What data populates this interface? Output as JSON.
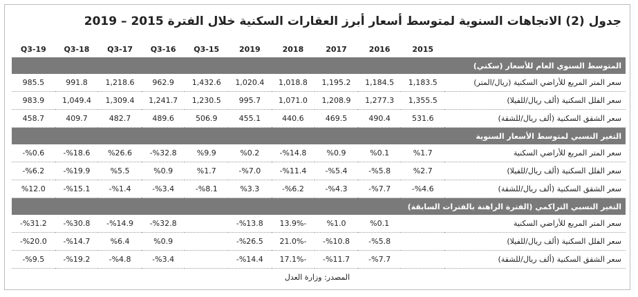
{
  "title": "جدول (2) الاتجاهات السنوية لمتوسط أسعار أبرز العقارات السكنية خلال الفترة 2015 – 2019",
  "table": {
    "columns": [
      "2015",
      "2016",
      "2017",
      "2018",
      "2019",
      "15-Q3",
      "16-Q3",
      "17-Q3",
      "18-Q3",
      "19-Q3"
    ],
    "sections": [
      {
        "title": "المتوسط السنوي العام للأسعار (سكني)",
        "rows": [
          {
            "label": "سعر المتر المربع للأراضي السكنية (ريال/المتر)",
            "values": [
              "1,183.5",
              "1,184.5",
              "1,195.2",
              "1,018.8",
              "1,020.4",
              "1,432.6",
              "962.9",
              "1,218.6",
              "991.8",
              "985.5"
            ]
          },
          {
            "label": "سعر الفلل السكنية (ألف ريال/للفيلا)",
            "values": [
              "1,355.5",
              "1,277.3",
              "1,208.9",
              "1,071.0",
              "995.7",
              "1,230.5",
              "1,241.7",
              "1,309.4",
              "1,049.4",
              "983.9"
            ]
          },
          {
            "label": "سعر الشقق السكنية (ألف ريال/للشقة)",
            "values": [
              "531.6",
              "490.4",
              "469.5",
              "440.6",
              "455.1",
              "506.9",
              "489.6",
              "482.7",
              "409.7",
              "458.7"
            ]
          }
        ]
      },
      {
        "title": "التغير النسبي لمتوسط الأسعار السنوية",
        "rows": [
          {
            "label": "سعر المتر المربع للأراضي السكنية",
            "values": [
              "%1.7",
              "%0.1",
              "%0.9",
              "%14.8-",
              "%0.2",
              "%9.9",
              "%32.8-",
              "%26.6",
              "%18.6-",
              "%0.6-"
            ]
          },
          {
            "label": "سعر الفلل السكنية (ألف ريال/للفيلا)",
            "values": [
              "%2.7",
              "%5.8-",
              "%5.4-",
              "%11.4-",
              "%7.0-",
              "%1.7",
              "%0.9",
              "%5.5",
              "%19.9-",
              "%6.2-"
            ]
          },
          {
            "label": "سعر الشقق السكنية (ألف ريال/للشقة)",
            "values": [
              "%4.6-",
              "%7.7-",
              "%4.3-",
              "%6.2-",
              "%3.3",
              "%8.1-",
              "%3.4-",
              "%1.4-",
              "%15.1-",
              "%12.0"
            ]
          }
        ]
      },
      {
        "title": "التغير النسبي التراكمي (الفترة الراهنة بالفترات السابقة)",
        "rows": [
          {
            "label": "سعر المتر المربع للأراضي السكنية",
            "values": [
              null,
              "%0.1",
              "%1.0",
              "-13.9%",
              "%13.8-",
              null,
              "%32.8-",
              "%14.9-",
              "%30.8-",
              "%31.2-"
            ]
          },
          {
            "label": "سعر الفلل السكنية (ألف ريال/للفيلا)",
            "values": [
              null,
              "%5.8-",
              "%10.8-",
              "-21.0%",
              "%26.5-",
              null,
              "%0.9",
              "%6.4",
              "%14.7-",
              "%20.0-"
            ]
          },
          {
            "label": "سعر الشقق السكنية (ألف ريال/للشقة)",
            "values": [
              null,
              "%7.7-",
              "%11.7-",
              "-17.1%",
              "%14.4-",
              null,
              "%3.4-",
              "%4.8-",
              "%19.2-",
              "%9.5-"
            ]
          }
        ]
      }
    ]
  },
  "source": "المصدر: وزارة العدل"
}
